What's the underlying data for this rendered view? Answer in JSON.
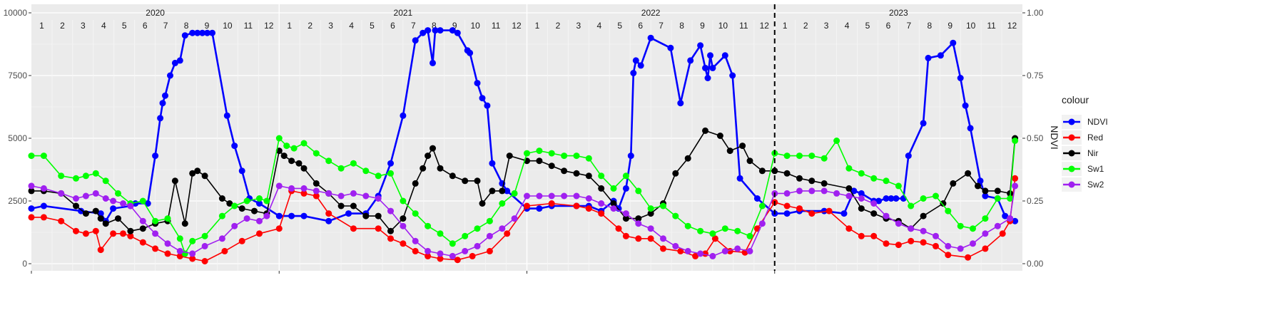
{
  "chart_data": {
    "type": "line",
    "title": "",
    "xlabel": "",
    "ylabel_left": "",
    "ylabel_right": "NDVI",
    "ylim_left": [
      0,
      10000
    ],
    "ylim_right": [
      0,
      1
    ],
    "yticks_left": [
      "0",
      "2500",
      "5000",
      "7500",
      "10000"
    ],
    "yticks_right": [
      "0.00",
      "0.25",
      "0.50",
      "0.75",
      "1.00"
    ],
    "years": [
      "2020",
      "2021",
      "2022",
      "2023"
    ],
    "months": [
      "1",
      "2",
      "3",
      "4",
      "5",
      "6",
      "7",
      "8",
      "9",
      "10",
      "11",
      "12"
    ],
    "x_domain": [
      2020.0,
      2024.0
    ],
    "vline_x": 2023.0,
    "grid": true,
    "legend": {
      "title": "colour",
      "position": "right",
      "entries": [
        {
          "label": "NDVI",
          "color": "#0000ff"
        },
        {
          "label": "Red",
          "color": "#ff0000"
        },
        {
          "label": "Nir",
          "color": "#000000"
        },
        {
          "label": "Sw1",
          "color": "#00ff00"
        },
        {
          "label": "Sw2",
          "color": "#a020f0"
        }
      ]
    },
    "series": [
      {
        "name": "NDVI",
        "color": "#0000ff",
        "axis": "right",
        "x": [
          2020.0,
          2020.05,
          2020.2,
          2020.28,
          2020.3,
          2020.33,
          2020.4,
          2020.42,
          2020.47,
          2020.5,
          2020.52,
          2020.53,
          2020.54,
          2020.56,
          2020.58,
          2020.6,
          2020.62,
          2020.65,
          2020.67,
          2020.69,
          2020.71,
          2020.73,
          2020.79,
          2020.82,
          2020.85,
          2020.88,
          2020.92,
          2021.0,
          2021.05,
          2021.1,
          2021.2,
          2021.28,
          2021.35,
          2021.4,
          2021.45,
          2021.5,
          2021.55,
          2021.58,
          2021.6,
          2021.62,
          2021.63,
          2021.65,
          2021.7,
          2021.72,
          2021.76,
          2021.77,
          2021.8,
          2021.82,
          2021.84,
          2021.86,
          2021.9,
          2021.92,
          2022.0,
          2022.05,
          2022.1,
          2022.2,
          2022.25,
          2022.3,
          2022.35,
          2022.37,
          2022.4,
          2022.42,
          2022.43,
          2022.44,
          2022.46,
          2022.5,
          2022.58,
          2022.62,
          2022.66,
          2022.7,
          2022.72,
          2022.73,
          2022.74,
          2022.75,
          2022.8,
          2022.83,
          2022.86,
          2022.93,
          2023.0,
          2023.05,
          2023.1,
          2023.2,
          2023.28,
          2023.32,
          2023.35,
          2023.4,
          2023.42,
          2023.45,
          2023.47,
          2023.49,
          2023.52,
          2023.54,
          2023.6,
          2023.62,
          2023.67,
          2023.72,
          2023.75,
          2023.77,
          2023.79,
          2023.83,
          2023.85,
          2023.9,
          2023.93,
          2023.95,
          2023.97
        ],
        "y": [
          0.22,
          0.23,
          0.21,
          0.2,
          0.17,
          0.22,
          0.23,
          0.24,
          0.24,
          0.43,
          0.58,
          0.64,
          0.67,
          0.75,
          0.8,
          0.81,
          0.91,
          0.92,
          0.92,
          0.92,
          0.92,
          0.92,
          0.59,
          0.47,
          0.37,
          0.26,
          0.24,
          0.19,
          0.19,
          0.19,
          0.17,
          0.2,
          0.2,
          0.27,
          0.4,
          0.59,
          0.89,
          0.92,
          0.93,
          0.8,
          0.93,
          0.93,
          0.93,
          0.92,
          0.85,
          0.84,
          0.72,
          0.66,
          0.63,
          0.4,
          0.32,
          0.29,
          0.22,
          0.22,
          0.23,
          0.23,
          0.23,
          0.21,
          0.25,
          0.22,
          0.3,
          0.43,
          0.76,
          0.81,
          0.79,
          0.9,
          0.86,
          0.64,
          0.81,
          0.87,
          0.78,
          0.74,
          0.83,
          0.78,
          0.83,
          0.75,
          0.34,
          0.26,
          0.2,
          0.2,
          0.21,
          0.21,
          0.2,
          0.29,
          0.28,
          0.25,
          0.25,
          0.26,
          0.26,
          0.26,
          0.26,
          0.43,
          0.56,
          0.82,
          0.83,
          0.88,
          0.74,
          0.63,
          0.54,
          0.33,
          0.27,
          0.26,
          0.19,
          0.18,
          0.17
        ]
      },
      {
        "name": "Red",
        "color": "#ff0000",
        "axis": "left",
        "x": [
          2020.0,
          2020.05,
          2020.12,
          2020.18,
          2020.22,
          2020.26,
          2020.28,
          2020.33,
          2020.37,
          2020.4,
          2020.45,
          2020.5,
          2020.55,
          2020.6,
          2020.65,
          2020.7,
          2020.78,
          2020.85,
          2020.92,
          2021.0,
          2021.05,
          2021.1,
          2021.15,
          2021.2,
          2021.3,
          2021.4,
          2021.45,
          2021.5,
          2021.55,
          2021.6,
          2021.65,
          2021.72,
          2021.78,
          2021.85,
          2021.92,
          2022.0,
          2022.1,
          2022.2,
          2022.25,
          2022.3,
          2022.37,
          2022.4,
          2022.45,
          2022.5,
          2022.55,
          2022.62,
          2022.68,
          2022.72,
          2022.76,
          2022.82,
          2022.88,
          2022.93,
          2023.0,
          2023.05,
          2023.1,
          2023.15,
          2023.22,
          2023.3,
          2023.35,
          2023.4,
          2023.45,
          2023.5,
          2023.55,
          2023.6,
          2023.65,
          2023.7,
          2023.78,
          2023.85,
          2023.92,
          2023.95,
          2023.97
        ],
        "y": [
          1850,
          1850,
          1700,
          1300,
          1200,
          1300,
          550,
          1200,
          1200,
          1100,
          850,
          600,
          400,
          300,
          200,
          100,
          500,
          900,
          1200,
          1400,
          2900,
          2800,
          2700,
          2000,
          1400,
          1400,
          1000,
          800,
          500,
          300,
          200,
          150,
          300,
          500,
          1200,
          2300,
          2400,
          2300,
          2200,
          2000,
          1400,
          1100,
          1000,
          1000,
          600,
          500,
          300,
          400,
          1000,
          500,
          450,
          1400,
          2450,
          2300,
          2200,
          2000,
          2100,
          1400,
          1100,
          1100,
          800,
          750,
          900,
          850,
          700,
          350,
          250,
          600,
          1200,
          1700,
          3400
        ],
        "labels_note": ""
      },
      {
        "name": "Nir",
        "color": "#000000",
        "axis": "left",
        "x": [
          2020.0,
          2020.05,
          2020.12,
          2020.18,
          2020.22,
          2020.26,
          2020.28,
          2020.3,
          2020.35,
          2020.4,
          2020.45,
          2020.5,
          2020.55,
          2020.58,
          2020.62,
          2020.65,
          2020.67,
          2020.7,
          2020.77,
          2020.8,
          2020.85,
          2020.9,
          2020.95,
          2021.0,
          2021.02,
          2021.05,
          2021.08,
          2021.1,
          2021.15,
          2021.2,
          2021.25,
          2021.3,
          2021.35,
          2021.4,
          2021.45,
          2021.5,
          2021.55,
          2021.58,
          2021.6,
          2021.62,
          2021.65,
          2021.7,
          2021.75,
          2021.8,
          2021.82,
          2021.86,
          2021.9,
          2021.93,
          2022.0,
          2022.05,
          2022.1,
          2022.15,
          2022.2,
          2022.25,
          2022.3,
          2022.35,
          2022.4,
          2022.45,
          2022.5,
          2022.55,
          2022.6,
          2022.65,
          2022.72,
          2022.78,
          2022.82,
          2022.87,
          2022.9,
          2022.95,
          2023.0,
          2023.05,
          2023.1,
          2023.15,
          2023.2,
          2023.3,
          2023.35,
          2023.4,
          2023.45,
          2023.5,
          2023.55,
          2023.6,
          2023.68,
          2023.72,
          2023.78,
          2023.82,
          2023.85,
          2023.9,
          2023.95,
          2023.97
        ],
        "y": [
          2900,
          2900,
          2800,
          2300,
          2000,
          2100,
          1800,
          1600,
          1800,
          1300,
          1400,
          1600,
          1700,
          3300,
          1600,
          3600,
          3700,
          3500,
          2600,
          2400,
          2200,
          2100,
          2000,
          4500,
          4300,
          4100,
          4000,
          3800,
          3200,
          2800,
          2300,
          2300,
          1900,
          1900,
          1300,
          1800,
          3200,
          3800,
          4300,
          4600,
          3800,
          3500,
          3300,
          3300,
          2400,
          2900,
          2900,
          4300,
          4100,
          4100,
          3900,
          3700,
          3600,
          3500,
          3000,
          2400,
          1800,
          1800,
          2000,
          2400,
          3600,
          4200,
          5300,
          5100,
          4500,
          4700,
          4100,
          3700,
          3700,
          3600,
          3400,
          3300,
          3200,
          3000,
          2200,
          2000,
          1800,
          1700,
          1400,
          1900,
          2400,
          3200,
          3600,
          3100,
          2900,
          2900,
          2800,
          5000
        ]
      },
      {
        "name": "Sw1",
        "color": "#00ff00",
        "axis": "left",
        "x": [
          2020.0,
          2020.05,
          2020.12,
          2020.18,
          2020.22,
          2020.26,
          2020.3,
          2020.35,
          2020.4,
          2020.45,
          2020.5,
          2020.55,
          2020.6,
          2020.62,
          2020.65,
          2020.7,
          2020.77,
          2020.82,
          2020.87,
          2020.92,
          2020.95,
          2021.0,
          2021.03,
          2021.06,
          2021.1,
          2021.15,
          2021.2,
          2021.25,
          2021.3,
          2021.35,
          2021.4,
          2021.45,
          2021.5,
          2021.55,
          2021.6,
          2021.65,
          2021.7,
          2021.75,
          2021.8,
          2021.85,
          2021.9,
          2021.95,
          2022.0,
          2022.05,
          2022.1,
          2022.15,
          2022.2,
          2022.25,
          2022.3,
          2022.35,
          2022.4,
          2022.45,
          2022.5,
          2022.55,
          2022.6,
          2022.65,
          2022.7,
          2022.75,
          2022.8,
          2022.85,
          2022.9,
          2022.95,
          2023.0,
          2023.05,
          2023.1,
          2023.15,
          2023.2,
          2023.25,
          2023.3,
          2023.35,
          2023.4,
          2023.45,
          2023.5,
          2023.55,
          2023.6,
          2023.65,
          2023.7,
          2023.75,
          2023.8,
          2023.85,
          2023.9,
          2023.95,
          2023.97
        ],
        "y": [
          4300,
          4300,
          3500,
          3400,
          3500,
          3600,
          3300,
          2800,
          2400,
          2500,
          1700,
          1800,
          1000,
          400,
          900,
          1100,
          1900,
          2300,
          2500,
          2600,
          2500,
          5000,
          4700,
          4600,
          4800,
          4400,
          4100,
          3800,
          4000,
          3700,
          3500,
          3600,
          2500,
          2000,
          1500,
          1200,
          800,
          1100,
          1400,
          1700,
          2400,
          2800,
          4400,
          4500,
          4400,
          4300,
          4300,
          4200,
          3500,
          3000,
          3500,
          2900,
          2200,
          2300,
          1900,
          1500,
          1300,
          1200,
          1400,
          1300,
          1100,
          2300,
          4400,
          4300,
          4300,
          4300,
          4200,
          4900,
          3800,
          3600,
          3400,
          3300,
          3100,
          2300,
          2600,
          2700,
          2100,
          1500,
          1400,
          1800,
          2600,
          2600,
          4900
        ]
      },
      {
        "name": "Sw2",
        "color": "#a020f0",
        "axis": "left",
        "x": [
          2020.0,
          2020.05,
          2020.12,
          2020.18,
          2020.22,
          2020.26,
          2020.3,
          2020.33,
          2020.37,
          2020.4,
          2020.45,
          2020.5,
          2020.55,
          2020.6,
          2020.65,
          2020.7,
          2020.77,
          2020.82,
          2020.87,
          2020.92,
          2020.95,
          2021.0,
          2021.05,
          2021.1,
          2021.15,
          2021.2,
          2021.25,
          2021.3,
          2021.35,
          2021.4,
          2021.45,
          2021.5,
          2021.55,
          2021.6,
          2021.65,
          2021.7,
          2021.75,
          2021.8,
          2021.85,
          2021.9,
          2021.95,
          2022.0,
          2022.05,
          2022.1,
          2022.15,
          2022.2,
          2022.25,
          2022.3,
          2022.35,
          2022.4,
          2022.45,
          2022.5,
          2022.55,
          2022.6,
          2022.65,
          2022.7,
          2022.75,
          2022.8,
          2022.85,
          2022.9,
          2022.95,
          2023.0,
          2023.05,
          2023.1,
          2023.15,
          2023.2,
          2023.25,
          2023.3,
          2023.35,
          2023.4,
          2023.45,
          2023.5,
          2023.55,
          2023.6,
          2023.65,
          2023.7,
          2023.75,
          2023.8,
          2023.85,
          2023.9,
          2023.95,
          2023.97
        ],
        "y": [
          3100,
          3000,
          2800,
          2600,
          2700,
          2800,
          2600,
          2500,
          2400,
          2300,
          1700,
          1200,
          800,
          500,
          400,
          700,
          1000,
          1500,
          1800,
          1700,
          1900,
          3100,
          3000,
          3000,
          2900,
          2800,
          2700,
          2800,
          2700,
          2600,
          2100,
          1500,
          900,
          500,
          400,
          300,
          500,
          700,
          1100,
          1400,
          1800,
          2700,
          2700,
          2700,
          2700,
          2700,
          2600,
          2400,
          2200,
          2000,
          1600,
          1400,
          1000,
          700,
          500,
          400,
          300,
          500,
          600,
          500,
          1600,
          2800,
          2800,
          2900,
          2900,
          2900,
          2800,
          2700,
          2600,
          2400,
          1900,
          1600,
          1400,
          1300,
          1100,
          700,
          600,
          800,
          1200,
          1500,
          1800,
          3100
        ]
      }
    ]
  }
}
